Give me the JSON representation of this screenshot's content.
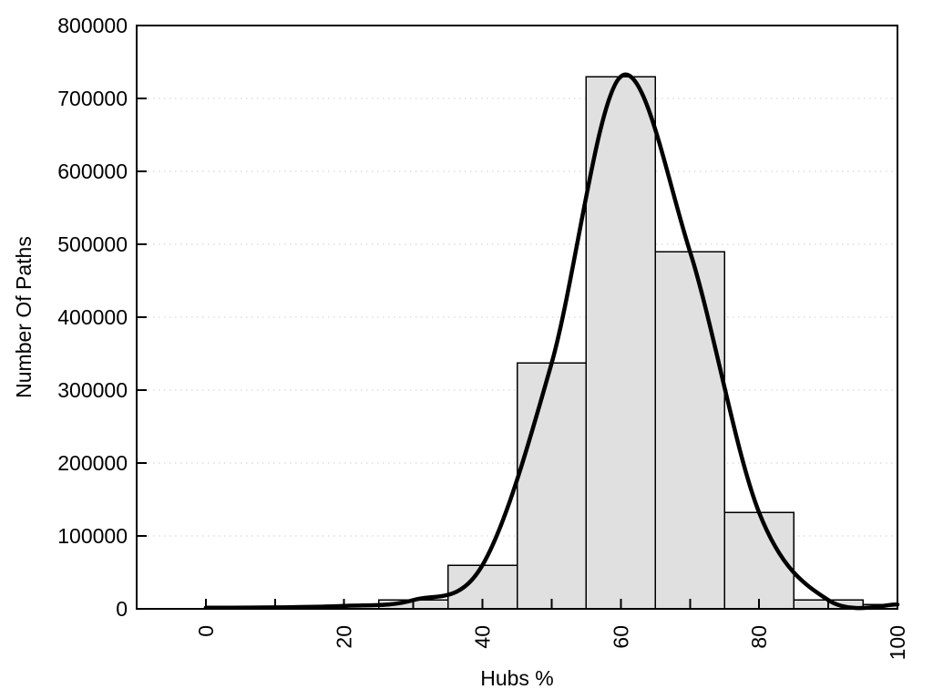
{
  "chart_data": {
    "type": "bar",
    "subtype": "histogram-with-fit-curve",
    "title": "",
    "xlabel": "Hubs %",
    "ylabel": "Number Of Paths",
    "xlim": [
      -10,
      100
    ],
    "ylim": [
      0,
      800000
    ],
    "x_tick_values": [
      0,
      20,
      40,
      60,
      80,
      100
    ],
    "x_tick_labels": [
      "0",
      "20",
      "40",
      "60",
      "80",
      "100"
    ],
    "x_minor_tick_step": 10,
    "x_tick_rotation_deg": -90,
    "y_tick_values": [
      0,
      100000,
      200000,
      300000,
      400000,
      500000,
      600000,
      700000,
      800000
    ],
    "y_tick_labels": [
      "0",
      "100000",
      "200000",
      "300000",
      "400000",
      "500000",
      "600000",
      "700000",
      "800000"
    ],
    "grid": "horizontal-dotted",
    "legend": "none",
    "bars": [
      {
        "x_start": 25,
        "x_end": 35,
        "value": 12000
      },
      {
        "x_start": 35,
        "x_end": 45,
        "value": 60000
      },
      {
        "x_start": 45,
        "x_end": 55,
        "value": 337000
      },
      {
        "x_start": 55,
        "x_end": 65,
        "value": 730000
      },
      {
        "x_start": 65,
        "x_end": 75,
        "value": 490000
      },
      {
        "x_start": 75,
        "x_end": 85,
        "value": 132000
      },
      {
        "x_start": 85,
        "x_end": 95,
        "value": 12000
      },
      {
        "x_start": 95,
        "x_end": 100,
        "value": 6000
      }
    ],
    "curve": {
      "name": "smooth-fit-curve",
      "points": [
        [
          0,
          1500
        ],
        [
          10,
          2000
        ],
        [
          20,
          4000
        ],
        [
          30,
          12000
        ],
        [
          40,
          60000
        ],
        [
          50,
          337000
        ],
        [
          60,
          730000
        ],
        [
          70,
          490000
        ],
        [
          80,
          132000
        ],
        [
          90,
          12000
        ],
        [
          100,
          6000
        ]
      ]
    },
    "colors": {
      "background": "#ffffff",
      "bar_fill": "#e0e0e0",
      "bar_border": "#000000",
      "curve": "#000000",
      "grid": "#cccccc",
      "axis": "#000000",
      "text": "#000000"
    }
  }
}
